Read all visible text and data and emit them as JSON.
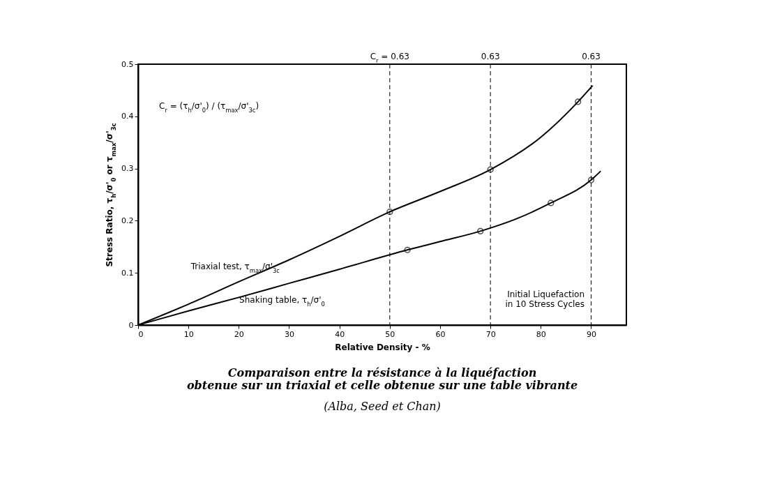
{
  "chart_data": {
    "type": "line",
    "title": "Comparaison entre la résistance à la liquéfaction obtenue sur un triaxial et celle obtenue sur une table vibrante",
    "subtitle": "(Alba, Seed et Chan)",
    "xlabel": "Relative Density - %",
    "ylabel": "Stress Ratio, τ$_{h}$/σ'$_{0}$ or τ$_{max}$/σ'$_{3c}$",
    "series": [
      {
        "name": "Triaxial test, τ$_{max}$/σ'$_{3c}$",
        "color": "#000000",
        "marker": "none",
        "x": [
          0,
          10,
          20,
          30,
          40,
          50,
          60,
          70,
          80,
          87.4,
          90.3
        ],
        "values": [
          0,
          0.04,
          0.083,
          0.125,
          0.17,
          0.217,
          0.256,
          0.298,
          0.36,
          0.428,
          0.459
        ]
      },
      {
        "type": "scatter",
        "color": "#000000",
        "marker": "circle",
        "x": [
          50,
          70,
          87.4
        ],
        "values": [
          0.217,
          0.298,
          0.428
        ]
      },
      {
        "name": "Shaking table, τ$_{h}$/σ'$_{0}$",
        "color": "#000000",
        "marker": "none",
        "x": [
          0,
          10,
          20,
          30,
          40,
          53.5,
          60,
          68,
          75,
          82,
          90,
          91.9
        ],
        "values": [
          0,
          0.027,
          0.053,
          0.08,
          0.107,
          0.144,
          0.16,
          0.18,
          0.203,
          0.234,
          0.278,
          0.295
        ]
      },
      {
        "type": "scatter",
        "color": "#000000",
        "marker": "circle",
        "x": [
          53.5,
          68,
          82,
          90
        ],
        "values": [
          0.144,
          0.18,
          0.234,
          0.278
        ]
      }
    ],
    "xlim": [
      0,
      97
    ],
    "xticks": [
      0,
      10,
      20,
      30,
      40,
      50,
      60,
      70,
      80,
      90
    ],
    "ylim": [
      0,
      0.5
    ],
    "yticks": [
      0,
      0.1,
      0.2,
      0.3,
      0.4,
      0.5
    ],
    "ref_lines": [
      {
        "axis": "x",
        "value": 50,
        "line_style": "dashed"
      },
      {
        "axis": "x",
        "value": 70,
        "line_style": "dashed"
      },
      {
        "axis": "x",
        "value": 90,
        "line_style": "dashed"
      }
    ],
    "annotations": [
      "C$_{r}$ = (τ$_{h}$/σ'$_{0}$) / (τ$_{max}$/σ'$_{3c}$)",
      "Initial Liquefaction\nin 10 Stress Cycles",
      {
        "text": "C$_{r}$ = 0.63",
        "x": 50,
        "y": 0.5
      },
      {
        "text": "0.63",
        "x": 70,
        "y": 0.5
      },
      {
        "text": "0.63",
        "x": 90,
        "y": 0.5
      }
    ],
    "grid": false
  }
}
